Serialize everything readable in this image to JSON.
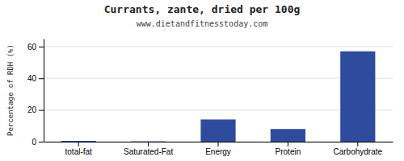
{
  "chart_data": {
    "type": "bar",
    "title": "Currants, zante, dried per 100g",
    "subtitle": "www.dietandfitnesstoday.com",
    "categories": [
      "total-fat",
      "Saturated-Fat",
      "Energy",
      "Protein",
      "Carbohydrate"
    ],
    "values": [
      0.5,
      0.2,
      14,
      8,
      57
    ],
    "color": "#2e4b9e",
    "ylabel": "Percentage of RDH (%)",
    "ylim": [
      0,
      65
    ],
    "yticks": [
      0,
      20,
      40,
      60
    ],
    "grid": true
  }
}
